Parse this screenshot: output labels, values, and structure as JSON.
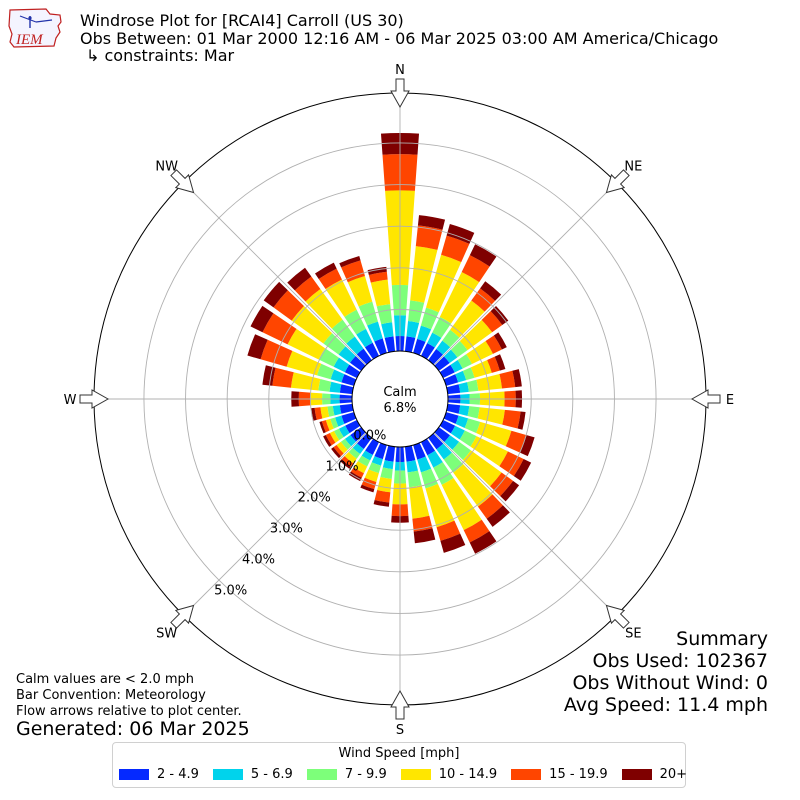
{
  "header": {
    "title_line1": "Windrose Plot for [RCAI4] Carroll (US 30)",
    "title_line2": "Obs Between: 01 Mar 2000 12:16 AM - 06 Mar 2025 03:00 AM America/Chicago",
    "title_line3": "↳ constraints: Mar",
    "logo_text": "IEM"
  },
  "summary": {
    "heading": "Summary",
    "obs_used": "Obs Used: 102367",
    "obs_without_wind": "Obs Without Wind: 0",
    "avg_speed": "Avg Speed: 11.4 mph"
  },
  "notes": {
    "calm_note": "Calm values are < 2.0 mph",
    "bar_convention": "Bar Convention: Meteorology",
    "flow_arrows": "Flow arrows relative to plot center.",
    "generated": "Generated: 06 Mar 2025"
  },
  "chart_data": {
    "type": "windrose",
    "calm_label": "Calm",
    "calm_percent": "6.8%",
    "radial_tick_labels": [
      "0.0%",
      "1.0%",
      "2.0%",
      "3.0%",
      "4.0%",
      "5.0%"
    ],
    "radial_ticks": [
      0,
      1,
      2,
      3,
      4,
      5
    ],
    "rmax": 6.2,
    "grid": true,
    "direction_labels": [
      "N",
      "NE",
      "E",
      "SE",
      "S",
      "SW",
      "W",
      "NW"
    ],
    "legend": {
      "title": "Wind Speed [mph]",
      "placement": "bottom-center",
      "bins": [
        {
          "label": "2 - 4.9",
          "color": "#0529ff"
        },
        {
          "label": "5 - 6.9",
          "color": "#00d3ec"
        },
        {
          "label": "7 - 9.9",
          "color": "#7dff7a"
        },
        {
          "label": "10 - 14.9",
          "color": "#ffe600"
        },
        {
          "label": "15 - 19.9",
          "color": "#ff4500"
        },
        {
          "label": "20+",
          "color": "#7f0000"
        }
      ]
    },
    "directions_deg": [
      0,
      10,
      20,
      30,
      40,
      50,
      60,
      70,
      80,
      90,
      100,
      110,
      120,
      130,
      140,
      150,
      160,
      170,
      180,
      190,
      200,
      210,
      220,
      230,
      240,
      250,
      260,
      270,
      280,
      290,
      300,
      310,
      320,
      330,
      340,
      350
    ],
    "cumulative_percent": [
      [
        0.36,
        0.86,
        1.59,
        3.86,
        4.73,
        5.24
      ],
      [
        0.36,
        0.73,
        1.23,
        2.54,
        3.04,
        3.29
      ],
      [
        0.35,
        0.68,
        1.13,
        2.45,
        2.93,
        3.22
      ],
      [
        0.34,
        0.62,
        1.04,
        2.24,
        2.69,
        2.98
      ],
      [
        0.33,
        0.58,
        0.9,
        1.77,
        2.13,
        2.34
      ],
      [
        0.32,
        0.55,
        0.85,
        1.58,
        1.88,
        2.06
      ],
      [
        0.31,
        0.52,
        0.77,
        1.33,
        1.57,
        1.7
      ],
      [
        0.3,
        0.5,
        0.71,
        1.14,
        1.34,
        1.48
      ],
      [
        0.3,
        0.51,
        0.74,
        1.31,
        1.63,
        1.79
      ],
      [
        0.3,
        0.52,
        0.77,
        1.36,
        1.63,
        1.78
      ],
      [
        0.3,
        0.52,
        0.77,
        1.38,
        1.76,
        1.88
      ],
      [
        0.31,
        0.55,
        0.85,
        1.63,
        2.01,
        2.21
      ],
      [
        0.32,
        0.58,
        0.89,
        1.73,
        2.15,
        2.35
      ],
      [
        0.33,
        0.6,
        0.95,
        1.86,
        2.2,
        2.38
      ],
      [
        0.34,
        0.64,
        1.03,
        2.04,
        2.4,
        2.64
      ],
      [
        0.35,
        0.68,
        1.14,
        2.35,
        2.68,
        2.98
      ],
      [
        0.36,
        0.68,
        1.08,
        2.05,
        2.39,
        2.69
      ],
      [
        0.36,
        0.62,
        0.98,
        1.74,
        2.05,
        2.33
      ],
      [
        0.36,
        0.57,
        0.88,
        1.38,
        1.66,
        1.82
      ],
      [
        0.36,
        0.54,
        0.78,
        1.1,
        1.35,
        1.45
      ],
      [
        0.35,
        0.51,
        0.7,
        0.92,
        1.1,
        1.18
      ],
      [
        0.34,
        0.49,
        0.65,
        0.83,
        0.95,
        1.04
      ],
      [
        0.33,
        0.48,
        0.62,
        0.76,
        0.86,
        0.92
      ],
      [
        0.32,
        0.48,
        0.6,
        0.73,
        0.82,
        0.89
      ],
      [
        0.31,
        0.48,
        0.61,
        0.72,
        0.83,
        0.9
      ],
      [
        0.31,
        0.47,
        0.59,
        0.7,
        0.8,
        0.86
      ],
      [
        0.3,
        0.47,
        0.6,
        0.77,
        0.91,
        0.99
      ],
      [
        0.3,
        0.52,
        0.72,
        1.01,
        1.28,
        1.46
      ],
      [
        0.3,
        0.55,
        0.82,
        1.48,
        1.93,
        2.17
      ],
      [
        0.31,
        0.58,
        0.92,
        1.68,
        2.33,
        2.66
      ],
      [
        0.32,
        0.62,
        1.02,
        1.85,
        2.52,
        2.84
      ],
      [
        0.33,
        0.67,
        1.12,
        2.06,
        2.6,
        2.89
      ],
      [
        0.34,
        0.7,
        1.2,
        2.11,
        2.48,
        2.74
      ],
      [
        0.35,
        0.72,
        1.23,
        2.04,
        2.33,
        2.49
      ],
      [
        0.36,
        0.78,
        1.28,
        1.92,
        2.31,
        2.42
      ],
      [
        0.36,
        0.7,
        1.14,
        1.73,
        1.92,
        2.04
      ]
    ]
  }
}
